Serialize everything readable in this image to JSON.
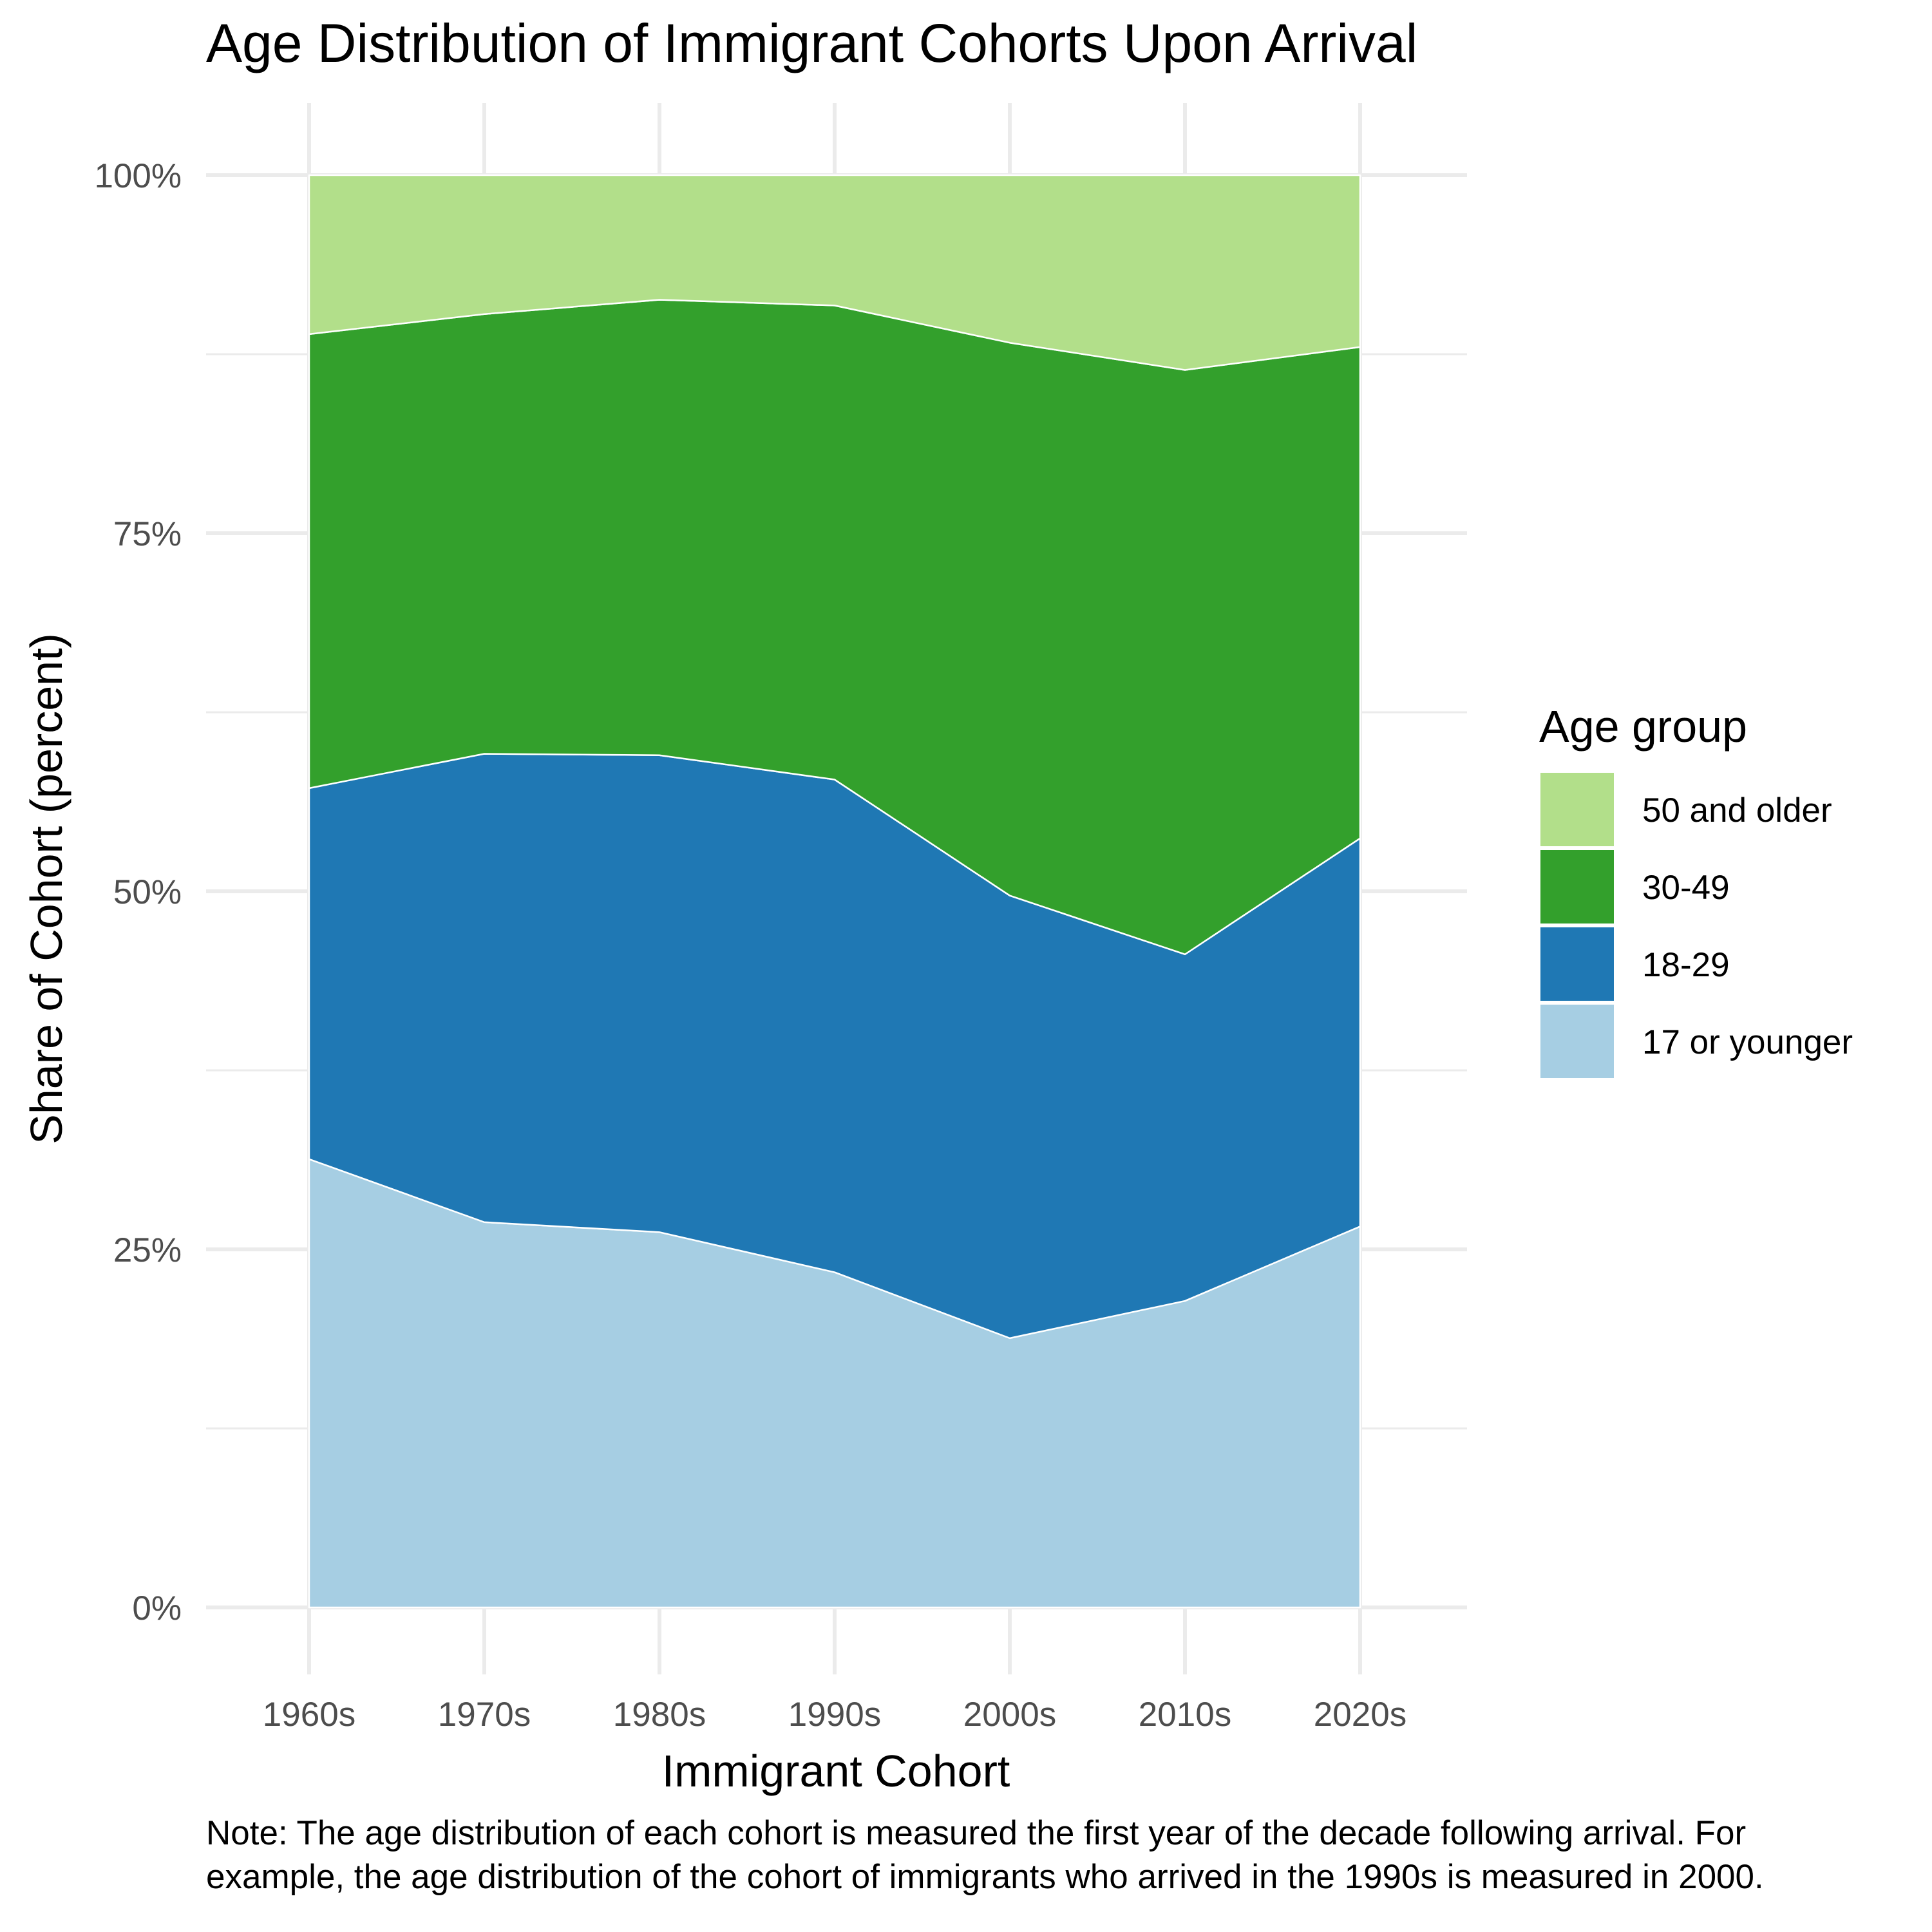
{
  "chart_data": {
    "type": "area",
    "stacked": true,
    "title": "Age Distribution of Immigrant Cohorts Upon Arrival",
    "xlabel": "Immigrant Cohort",
    "ylabel": "Share of Cohort (percent)",
    "categories": [
      "1960s",
      "1970s",
      "1980s",
      "1990s",
      "2000s",
      "2010s",
      "2020s"
    ],
    "ylim": [
      0,
      100
    ],
    "yticks": [
      0,
      25,
      50,
      75,
      100
    ],
    "ytick_labels": [
      "0%",
      "25%",
      "50%",
      "75%",
      "100%"
    ],
    "grid": true,
    "legend": {
      "title": "Age group",
      "position": "right",
      "order": [
        "50 and older",
        "30-49",
        "18-29",
        "17 or younger"
      ]
    },
    "series": [
      {
        "name": "17 or younger",
        "color": "#a6cee3",
        "values": [
          31.3,
          26.9,
          26.2,
          23.4,
          18.8,
          21.4,
          26.6
        ]
      },
      {
        "name": "18-29",
        "color": "#1f78b4",
        "values": [
          25.9,
          32.7,
          33.3,
          34.4,
          30.9,
          24.2,
          27.1
        ]
      },
      {
        "name": "30-49",
        "color": "#33a02c",
        "values": [
          31.7,
          30.7,
          31.8,
          33.1,
          38.6,
          40.8,
          34.3
        ]
      },
      {
        "name": "50 and older",
        "color": "#b2df8a",
        "values": [
          11.1,
          9.7,
          8.7,
          9.1,
          11.7,
          13.6,
          12.0
        ]
      }
    ]
  },
  "note": {
    "lines": [
      "Note: The age distribution of each cohort is measured the first year of the decade following arrival. For",
      "example, the age distribution of the cohort of immigrants who arrived in the 1990s is measured in 2000."
    ]
  }
}
